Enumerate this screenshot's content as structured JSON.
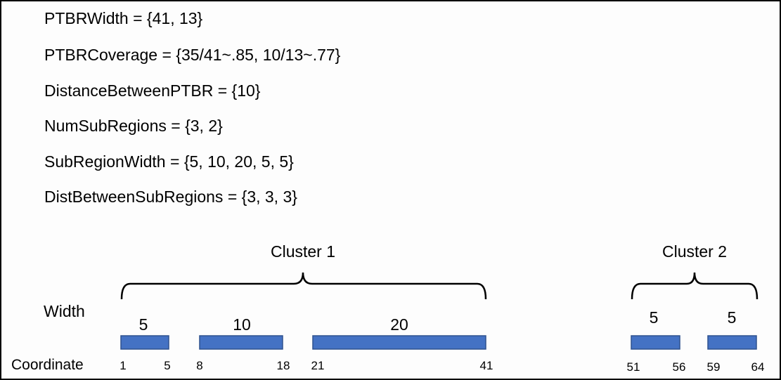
{
  "definitions": [
    "PTBRWidth = {41, 13}",
    "PTBRCoverage = {35/41~.85, 10/13~.77}",
    "DistanceBetweenPTBR = {10}",
    "NumSubRegions = {3, 2}",
    "SubRegionWidth = {5, 10, 20, 5, 5}",
    "DistBetweenSubRegions = {3, 3, 3}"
  ],
  "labels": {
    "width": "Width",
    "coordinate": "Coordinate"
  },
  "clusters": [
    {
      "name": "Cluster 1",
      "start": 1,
      "end": 41
    },
    {
      "name": "Cluster 2",
      "start": 51,
      "end": 64
    }
  ],
  "subregions": [
    {
      "width": "5",
      "start": 1,
      "end": 5
    },
    {
      "width": "10",
      "start": 8,
      "end": 18
    },
    {
      "width": "20",
      "start": 21,
      "end": 41
    },
    {
      "width": "5",
      "start": 51,
      "end": 56
    },
    {
      "width": "5",
      "start": 59,
      "end": 64
    }
  ],
  "colors": {
    "bar_fill": "#4472C4",
    "bar_stroke": "#2F528F",
    "line": "#000000"
  }
}
